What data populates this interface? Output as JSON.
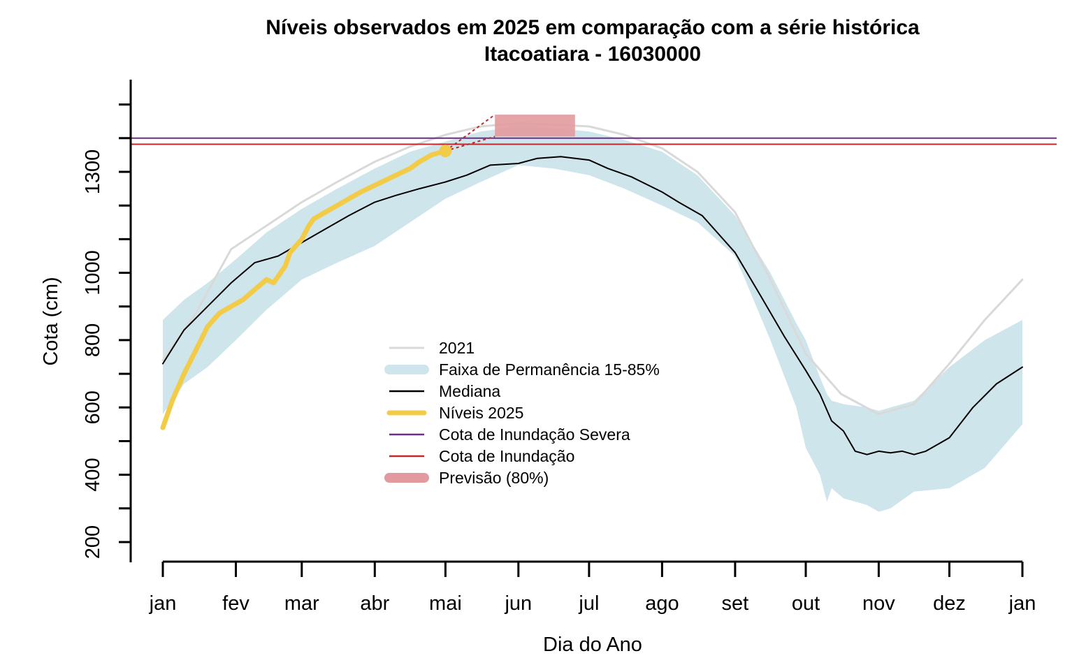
{
  "chart_data": {
    "type": "line",
    "title": "Níveis observados em 2025 em comparação com a série histórica",
    "subtitle": "Itacoatiara - 16030000",
    "xlabel": "Dia do Ano",
    "ylabel": "Cota (cm)",
    "xlim": [
      1,
      366
    ],
    "ylim": [
      140,
      1480
    ],
    "x_ticks": [
      {
        "label": "jan",
        "day": 1
      },
      {
        "label": "fev",
        "day": 32
      },
      {
        "label": "mar",
        "day": 60
      },
      {
        "label": "abr",
        "day": 91
      },
      {
        "label": "mai",
        "day": 121
      },
      {
        "label": "jun",
        "day": 152
      },
      {
        "label": "jul",
        "day": 182
      },
      {
        "label": "ago",
        "day": 213
      },
      {
        "label": "set",
        "day": 244
      },
      {
        "label": "out",
        "day": 274
      },
      {
        "label": "nov",
        "day": 305
      },
      {
        "label": "dez",
        "day": 335
      },
      {
        "label": "jan",
        "day": 366
      }
    ],
    "y_ticks_minor": [
      200,
      300,
      400,
      500,
      600,
      700,
      800,
      900,
      1000,
      1100,
      1200,
      1300,
      1400
    ],
    "y_tick_labels": [
      "200",
      "400",
      "600",
      "800",
      "1000",
      "1300"
    ],
    "y_tick_label_values": [
      200,
      400,
      600,
      800,
      1000,
      1300
    ],
    "grid": false,
    "legend_position": "center",
    "legend": [
      {
        "label": "2021",
        "color": "#d9d9d9",
        "style": "line"
      },
      {
        "label": "Faixa de Permanência 15-85%",
        "color": "#cfe5ec",
        "style": "band"
      },
      {
        "label": "Mediana",
        "color": "#000000",
        "style": "line"
      },
      {
        "label": "Níveis 2025",
        "color": "#f2cc48",
        "style": "thick-line"
      },
      {
        "label": "Cota de Inundação Severa",
        "color": "#6b2f86",
        "style": "line"
      },
      {
        "label": "Cota de Inundação",
        "color": "#c0292b",
        "style": "line"
      },
      {
        "label": "Previsão (80%)",
        "color": "#e29a9e",
        "style": "band"
      }
    ],
    "series": [
      {
        "name": "2021",
        "color": "#d9d9d9",
        "x": [
          1,
          15,
          30,
          45,
          60,
          75,
          91,
          106,
          121,
          136,
          152,
          167,
          182,
          197,
          213,
          228,
          244,
          259,
          274,
          289,
          305,
          320,
          335,
          350,
          366
        ],
        "y": [
          740,
          880,
          1070,
          1140,
          1210,
          1270,
          1330,
          1375,
          1410,
          1435,
          1445,
          1440,
          1435,
          1410,
          1370,
          1300,
          1180,
          980,
          760,
          640,
          580,
          610,
          730,
          860,
          980
        ]
      },
      {
        "name": "Mediana",
        "color": "#000000",
        "x": [
          1,
          10,
          20,
          30,
          40,
          50,
          60,
          70,
          80,
          91,
          100,
          110,
          121,
          130,
          140,
          152,
          160,
          170,
          182,
          190,
          200,
          213,
          220,
          230,
          244,
          255,
          265,
          274,
          280,
          285,
          290,
          295,
          300,
          305,
          310,
          315,
          320,
          325,
          330,
          335,
          345,
          355,
          366
        ],
        "y": [
          730,
          830,
          900,
          970,
          1030,
          1050,
          1090,
          1130,
          1170,
          1210,
          1230,
          1250,
          1270,
          1290,
          1320,
          1325,
          1340,
          1345,
          1335,
          1310,
          1285,
          1240,
          1210,
          1170,
          1060,
          930,
          810,
          710,
          640,
          560,
          530,
          470,
          460,
          470,
          465,
          470,
          460,
          470,
          490,
          510,
          600,
          670,
          720
        ]
      },
      {
        "name": "Níveis 2025",
        "color": "#f2cc48",
        "x": [
          1,
          5,
          10,
          15,
          20,
          25,
          30,
          35,
          40,
          45,
          48,
          50,
          53,
          55,
          60,
          63,
          65,
          70,
          75,
          80,
          85,
          91,
          97,
          100,
          106,
          110,
          115,
          121
        ],
        "y": [
          540,
          620,
          700,
          770,
          840,
          880,
          900,
          920,
          950,
          980,
          970,
          990,
          1020,
          1060,
          1100,
          1140,
          1160,
          1180,
          1200,
          1220,
          1240,
          1260,
          1280,
          1290,
          1310,
          1330,
          1350,
          1362
        ]
      }
    ],
    "band_15_85": {
      "name": "Faixa de Permanência 15-85%",
      "color": "#cfe5ec",
      "x": [
        1,
        10,
        20,
        32,
        45,
        60,
        75,
        91,
        106,
        121,
        136,
        152,
        167,
        182,
        197,
        213,
        228,
        244,
        259,
        270,
        274,
        280,
        283,
        285,
        290,
        300,
        305,
        310,
        320,
        335,
        350,
        366
      ],
      "upper": [
        860,
        920,
        970,
        1040,
        1120,
        1190,
        1250,
        1310,
        1360,
        1390,
        1420,
        1435,
        1430,
        1420,
        1395,
        1360,
        1290,
        1170,
        1000,
        850,
        800,
        690,
        640,
        620,
        610,
        600,
        590,
        600,
        620,
        720,
        800,
        860
      ],
      "lower": [
        580,
        670,
        720,
        800,
        890,
        980,
        1030,
        1080,
        1150,
        1220,
        1270,
        1320,
        1310,
        1290,
        1250,
        1200,
        1150,
        1050,
        800,
        600,
        480,
        400,
        320,
        360,
        330,
        310,
        290,
        300,
        350,
        360,
        420,
        550
      ]
    },
    "hlines": [
      {
        "name": "Cota de Inundação Severa",
        "y": 1400,
        "color": "#6b2f86"
      },
      {
        "name": "Cota de Inundação",
        "y": 1382,
        "color": "#c0292b"
      }
    ],
    "forecast": {
      "name": "Previsão (80%)",
      "color": "#e29a9e",
      "x_start": 142,
      "x_end": 176,
      "y_low": 1405,
      "y_high": 1470,
      "origin": {
        "x": 121,
        "y": 1362
      }
    }
  }
}
